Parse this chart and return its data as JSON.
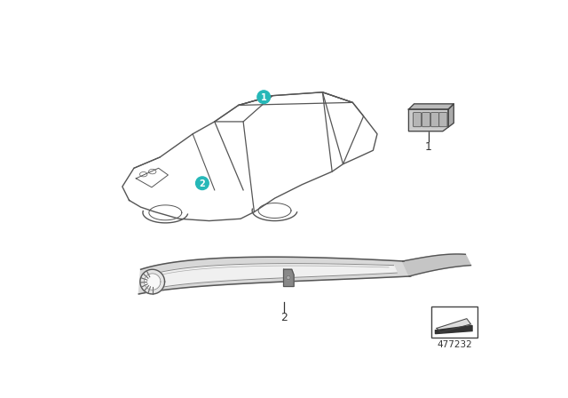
{
  "background_color": "#ffffff",
  "part_number": "477232",
  "teal_color": "#26b8b8",
  "car_outline_color": "#555555",
  "part_outline_color": "#555555"
}
